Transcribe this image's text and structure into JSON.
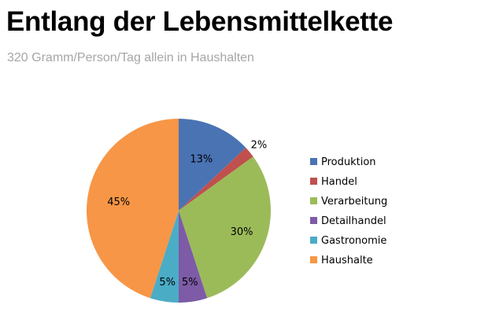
{
  "title": "Entlang der Lebensmittelkette",
  "subtitle": "320 Gramm/Person/Tag allein in Haushalten",
  "chart_data": {
    "type": "pie",
    "title": "Entlang der Lebensmittelkette",
    "subtitle": "320 Gramm/Person/Tag allein in Haushalten",
    "legend_position": "right",
    "categories": [
      "Produktion",
      "Handel",
      "Verarbeitung",
      "Detailhandel",
      "Gastronomie",
      "Haushalte"
    ],
    "values": [
      13,
      2,
      30,
      5,
      5,
      45
    ],
    "data_labels": [
      "13%",
      "2%",
      "30%",
      "5%",
      "5%",
      "45%"
    ],
    "colors": [
      "#4a73b4",
      "#c0504d",
      "#9bbb59",
      "#7d5ba6",
      "#4bacc6",
      "#f79646"
    ],
    "start_angle_deg": 0,
    "direction": "clockwise"
  }
}
